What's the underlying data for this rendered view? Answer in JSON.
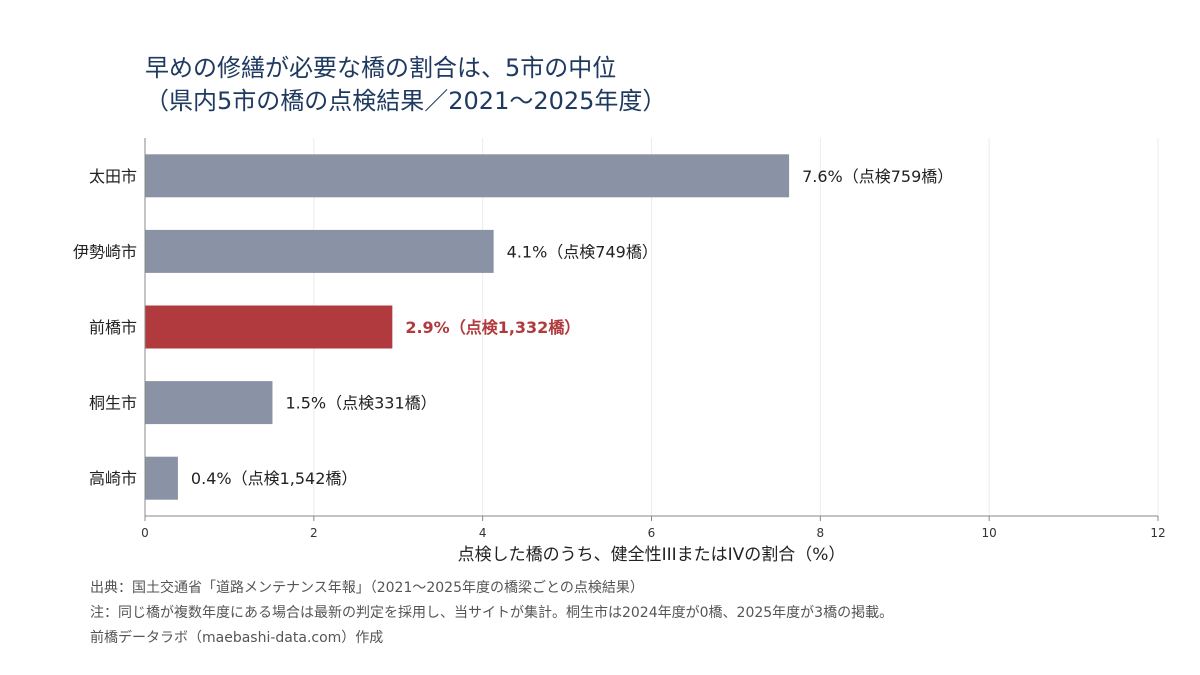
{
  "title": "早めの修繕が必要な橋の割合は、5市の中位\n（県内5市の橋の点検結果／2021〜2025年度）",
  "chart_data": {
    "type": "bar",
    "orientation": "horizontal",
    "categories": [
      "太田市",
      "伊勢崎市",
      "前橋市",
      "桐生市",
      "高崎市"
    ],
    "values": [
      7.63,
      4.13,
      2.93,
      1.51,
      0.39
    ],
    "value_labels": [
      "7.6%（点検759橋）",
      "4.1%（点検749橋）",
      "2.9%（点検1,332橋）",
      "1.5%（点検331橋）",
      "0.4%（点検1,542橋）"
    ],
    "highlight": "前橋市",
    "xlabel": "点検した橋のうち、健全性IIIまたはIVの割合（%）",
    "xlim": [
      0,
      12
    ],
    "xticks": [
      0,
      2,
      4,
      6,
      8,
      10,
      12
    ],
    "grid": "vertical",
    "colors": {
      "default": "#8a93a5",
      "highlight": "#b03a3d",
      "highlight_text": "#b03a3d",
      "title": "#1f3a60"
    }
  },
  "footer": {
    "source": "出典：国土交通省「道路メンテナンス年報」（2021〜2025年度の橋梁ごとの点検結果）",
    "note": "注：同じ橋が複数年度にある場合は最新の判定を採用し、当サイトが集計。桐生市は2024年度が0橋、2025年度が3橋の掲載。",
    "credit": "前橋データラボ（maebashi-data.com）作成"
  }
}
